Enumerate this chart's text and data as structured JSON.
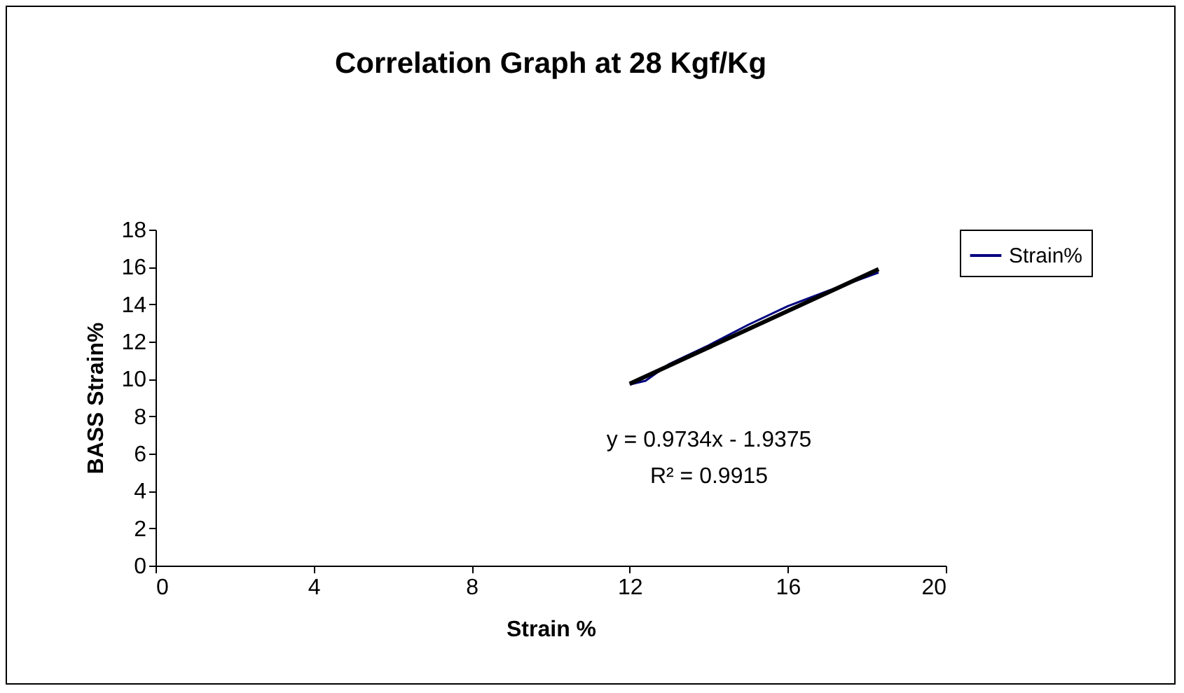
{
  "chart_data": {
    "type": "line",
    "title": "Correlation Graph at 28 Kgf/Kg",
    "xlabel": "Strain %",
    "ylabel": "BASS Strain%",
    "series": [
      {
        "name": "Strain%",
        "color": "#000080",
        "x": [
          12,
          12.4,
          13,
          14,
          15,
          16,
          17,
          18.3
        ],
        "values": [
          9.7,
          9.9,
          10.8,
          11.8,
          12.9,
          13.9,
          14.7,
          15.7
        ]
      },
      {
        "type": "line",
        "color": "#000000",
        "x": [
          12,
          18.3
        ],
        "values": [
          9.74,
          15.88
        ]
      }
    ],
    "xlim": [
      0,
      20
    ],
    "xticks": [
      0,
      4,
      8,
      12,
      16,
      20
    ],
    "ylim": [
      0,
      18
    ],
    "yticks": [
      0,
      2,
      4,
      6,
      8,
      10,
      12,
      14,
      16,
      18
    ],
    "annotations": [
      "y = 0.9734x - 1.9375",
      "R² = 0.9915"
    ],
    "grid": false,
    "legend": "right",
    "marker": "none",
    "line_style": "solid"
  }
}
